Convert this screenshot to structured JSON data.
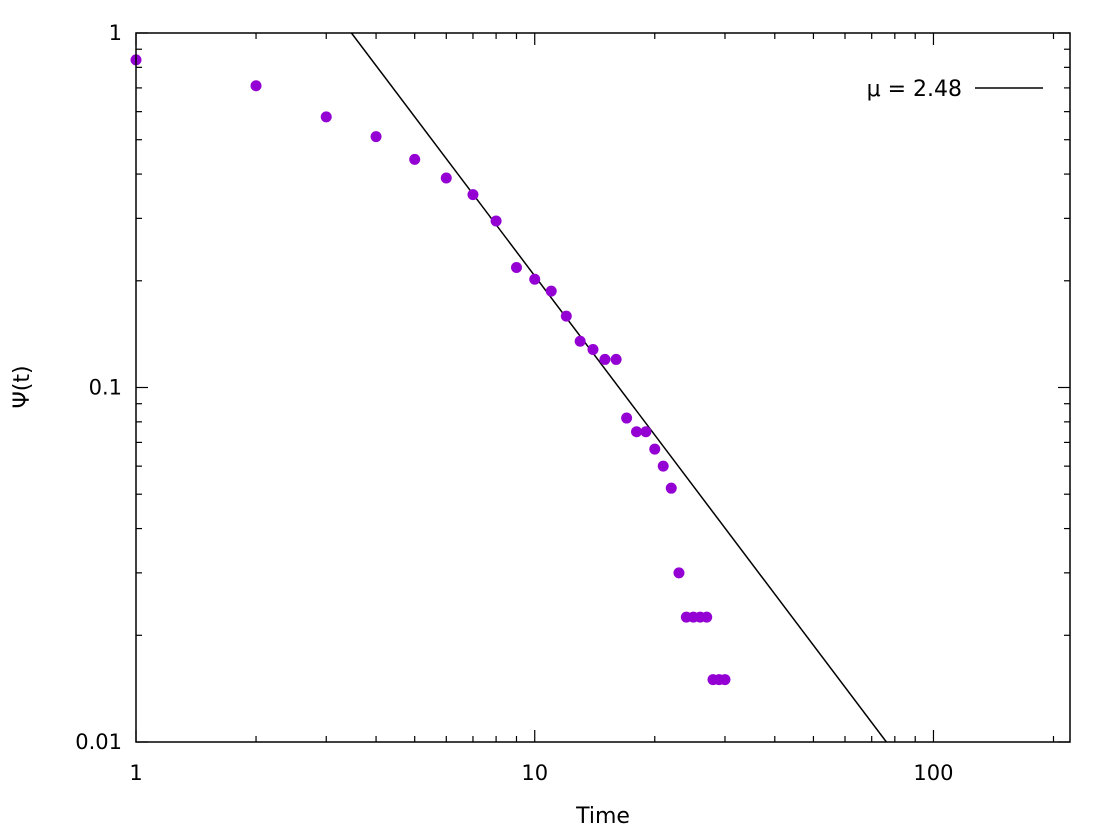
{
  "chart_data": {
    "type": "scatter",
    "title": "",
    "xlabel": "Time",
    "ylabel": "Ψ(t)",
    "xscale": "log",
    "yscale": "log",
    "xlim": [
      1,
      220
    ],
    "ylim": [
      0.01,
      1
    ],
    "x_ticks": [
      1,
      10,
      100
    ],
    "x_tick_labels": [
      "1",
      "10",
      "100"
    ],
    "y_ticks": [
      0.01,
      0.1,
      1
    ],
    "y_tick_labels": [
      "0.01",
      "0.1",
      "1"
    ],
    "grid": false,
    "legend_position": "top-right",
    "series": [
      {
        "type": "scatter",
        "color": "#9400d3",
        "x": [
          1,
          2,
          3,
          4,
          5,
          6,
          7,
          8,
          9,
          10,
          11,
          12,
          13,
          14,
          15,
          16,
          17,
          18,
          19,
          20,
          21,
          22,
          23,
          24,
          25,
          26,
          27,
          28,
          29,
          30
        ],
        "y": [
          0.84,
          0.71,
          0.58,
          0.51,
          0.44,
          0.39,
          0.35,
          0.295,
          0.218,
          0.202,
          0.187,
          0.159,
          0.135,
          0.128,
          0.12,
          0.12,
          0.082,
          0.075,
          0.075,
          0.067,
          0.06,
          0.052,
          0.03,
          0.0225,
          0.0225,
          0.0225,
          0.0225,
          0.015,
          0.015,
          0.015
        ]
      },
      {
        "type": "line",
        "name": "μ = 2.48",
        "color": "#000000",
        "x": [
          3.47,
          76.2
        ],
        "y": [
          1,
          0.01
        ]
      }
    ]
  }
}
